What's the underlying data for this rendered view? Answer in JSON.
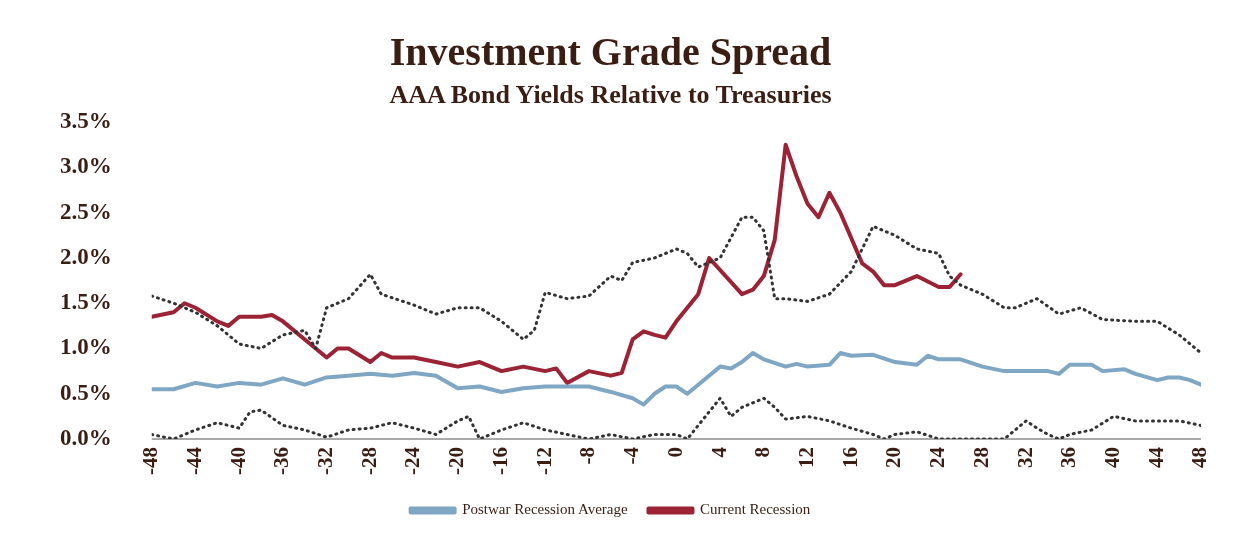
{
  "chart_data": {
    "type": "line",
    "title": "Investment Grade Spread",
    "subtitle": "AAA Bond Yields Relative to Treasuries",
    "xlim": [
      -48,
      48
    ],
    "xticks": [
      -48,
      -44,
      -40,
      -36,
      -32,
      -28,
      -24,
      -20,
      -16,
      -12,
      -8,
      -4,
      0,
      4,
      8,
      12,
      16,
      20,
      24,
      28,
      32,
      36,
      40,
      44,
      48
    ],
    "ylim": [
      0,
      3.5
    ],
    "yticks": [
      {
        "value": 0,
        "label": "0.0%"
      },
      {
        "value": 0.5,
        "label": "0.5%"
      },
      {
        "value": 1,
        "label": "1.0%"
      },
      {
        "value": 1.5,
        "label": "1.5%"
      },
      {
        "value": 2,
        "label": "2.0%"
      },
      {
        "value": 2.5,
        "label": "2.5%"
      },
      {
        "value": 3,
        "label": "3.0%"
      },
      {
        "value": 3.5,
        "label": "3.5%"
      }
    ],
    "grid": false,
    "legend": "bottom",
    "marker": "none",
    "series": [
      {
        "color": "#333333",
        "line_style": "dotted",
        "x": [
          -48,
          -46,
          -44,
          -42,
          -40,
          -38,
          -36,
          -34,
          -33,
          -32,
          -30,
          -28,
          -27,
          -25,
          -24,
          -22,
          -20,
          -18,
          -16,
          -14,
          -13,
          -12,
          -10,
          -8,
          -6,
          -5,
          -4,
          -2,
          0,
          1,
          2,
          4,
          6,
          7,
          8,
          9,
          10,
          12,
          14,
          16,
          18,
          20,
          22,
          24,
          25,
          26,
          28,
          30,
          31,
          33,
          35,
          37,
          39,
          42,
          44,
          46,
          48
        ],
        "values": [
          1.58,
          1.5,
          1.4,
          1.25,
          1.05,
          1.0,
          1.15,
          1.2,
          1.0,
          1.45,
          1.55,
          1.82,
          1.6,
          1.52,
          1.48,
          1.38,
          1.45,
          1.45,
          1.3,
          1.1,
          1.2,
          1.62,
          1.55,
          1.58,
          1.8,
          1.75,
          1.95,
          2.0,
          2.1,
          2.05,
          1.9,
          2.0,
          2.45,
          2.45,
          2.3,
          1.55,
          1.55,
          1.52,
          1.6,
          1.85,
          2.35,
          2.25,
          2.1,
          2.05,
          1.8,
          1.7,
          1.6,
          1.45,
          1.45,
          1.55,
          1.38,
          1.45,
          1.32,
          1.3,
          1.3,
          1.15,
          0.95
        ]
      },
      {
        "color": "#333333",
        "line_style": "dotted",
        "x": [
          -48,
          -46,
          -44,
          -42,
          -40,
          -39,
          -38,
          -36,
          -34,
          -32,
          -30,
          -28,
          -26,
          -24,
          -22,
          -20,
          -19,
          -18,
          -16,
          -14,
          -12,
          -10,
          -8,
          -6,
          -4,
          -2,
          0,
          1,
          2,
          4,
          5,
          6,
          8,
          9,
          10,
          12,
          14,
          16,
          18,
          19,
          20,
          22,
          24,
          26,
          28,
          30,
          32,
          33,
          34,
          35,
          36,
          38,
          40,
          42,
          44,
          46,
          48
        ],
        "values": [
          0.05,
          0,
          0.1,
          0.18,
          0.12,
          0.3,
          0.32,
          0.15,
          0.1,
          0.02,
          0.1,
          0.12,
          0.18,
          0.12,
          0.05,
          0.2,
          0.25,
          0,
          0.1,
          0.18,
          0.1,
          0.05,
          0,
          0.05,
          0,
          0.05,
          0.05,
          0,
          0.15,
          0.45,
          0.25,
          0.35,
          0.45,
          0.35,
          0.22,
          0.25,
          0.2,
          0.12,
          0.05,
          0,
          0.05,
          0.08,
          0,
          0,
          0,
          0,
          0.2,
          0.12,
          0.05,
          0,
          0.05,
          0.1,
          0.25,
          0.2,
          0.2,
          0.2,
          0.15
        ]
      },
      {
        "name": "Postwar Recession Average",
        "color": "#7fa7c4",
        "line_style": "solid",
        "x": [
          -48,
          -46,
          -44,
          -42,
          -40,
          -38,
          -36,
          -34,
          -32,
          -30,
          -28,
          -26,
          -24,
          -22,
          -20,
          -18,
          -16,
          -14,
          -12,
          -10,
          -8,
          -6,
          -4,
          -3,
          -2,
          -1,
          0,
          1,
          2,
          4,
          5,
          6,
          7,
          8,
          10,
          11,
          12,
          14,
          15,
          16,
          18,
          20,
          22,
          23,
          24,
          26,
          28,
          30,
          32,
          34,
          35,
          36,
          38,
          39,
          41,
          42,
          44,
          45,
          46,
          47,
          48
        ],
        "values": [
          0.55,
          0.55,
          0.62,
          0.58,
          0.62,
          0.6,
          0.67,
          0.6,
          0.68,
          0.7,
          0.72,
          0.7,
          0.73,
          0.7,
          0.56,
          0.58,
          0.52,
          0.56,
          0.58,
          0.58,
          0.58,
          0.52,
          0.45,
          0.38,
          0.5,
          0.58,
          0.58,
          0.5,
          0.6,
          0.8,
          0.78,
          0.85,
          0.95,
          0.88,
          0.8,
          0.83,
          0.8,
          0.82,
          0.95,
          0.92,
          0.93,
          0.85,
          0.82,
          0.92,
          0.88,
          0.88,
          0.8,
          0.75,
          0.75,
          0.75,
          0.72,
          0.82,
          0.82,
          0.75,
          0.77,
          0.72,
          0.65,
          0.68,
          0.68,
          0.65,
          0.6
        ]
      },
      {
        "name": "Current Recession",
        "color": "#9b2335",
        "line_style": "solid",
        "x": [
          -48,
          -46,
          -45,
          -44,
          -42,
          -41,
          -40,
          -38,
          -37,
          -36,
          -34,
          -32,
          -31,
          -30,
          -28,
          -27,
          -26,
          -24,
          -22,
          -20,
          -18,
          -16,
          -14,
          -12,
          -11,
          -10,
          -8,
          -6,
          -5,
          -4,
          -3,
          -2,
          -1,
          0,
          2,
          3,
          6,
          7,
          8,
          9,
          10,
          11,
          12,
          13,
          14,
          15,
          17,
          18,
          19,
          20,
          22,
          24,
          25,
          26
        ],
        "values": [
          1.35,
          1.4,
          1.5,
          1.45,
          1.3,
          1.25,
          1.35,
          1.35,
          1.37,
          1.3,
          1.1,
          0.9,
          1.0,
          1.0,
          0.85,
          0.95,
          0.9,
          0.9,
          0.85,
          0.8,
          0.85,
          0.75,
          0.8,
          0.75,
          0.78,
          0.62,
          0.75,
          0.7,
          0.73,
          1.1,
          1.19,
          1.15,
          1.12,
          1.3,
          1.6,
          2.0,
          1.6,
          1.65,
          1.8,
          2.2,
          3.25,
          2.9,
          2.6,
          2.45,
          2.72,
          2.5,
          1.94,
          1.85,
          1.7,
          1.7,
          1.8,
          1.68,
          1.68,
          1.82
        ]
      }
    ]
  }
}
